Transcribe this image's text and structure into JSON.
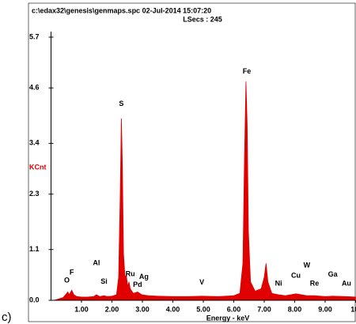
{
  "chart_data": {
    "type": "area",
    "header": [
      "c:\\edax32\\genesis\\genmaps.spc  02-Jul-2014 15:07:20",
      "LSecs :  245"
    ],
    "xlabel": "Energy - keV",
    "ylabel": "KCnt",
    "panel_label": "c)",
    "xlim": [
      0,
      10
    ],
    "ylim": [
      0,
      5.7
    ],
    "xticks": [
      {
        "value": 1,
        "label": "1.00"
      },
      {
        "value": 2,
        "label": "2.00"
      },
      {
        "value": 3,
        "label": "3.00"
      },
      {
        "value": 4,
        "label": "4.00"
      },
      {
        "value": 5,
        "label": "5.00"
      },
      {
        "value": 6,
        "label": "6.00"
      },
      {
        "value": 7,
        "label": "7.00"
      },
      {
        "value": 8,
        "label": "8.00"
      },
      {
        "value": 9,
        "label": "9.00"
      },
      {
        "value": 10,
        "label": "10."
      }
    ],
    "yticks": [
      {
        "value": 0,
        "label": "0.0"
      },
      1.1,
      2.3,
      3.4,
      4.6,
      5.7
    ],
    "color": "#e00000",
    "x": [
      0.1,
      0.2,
      0.3,
      0.4,
      0.5,
      0.55,
      0.6,
      0.68,
      0.75,
      0.85,
      1.0,
      1.2,
      1.4,
      1.49,
      1.6,
      1.74,
      1.85,
      2.0,
      2.15,
      2.22,
      2.27,
      2.31,
      2.34,
      2.38,
      2.43,
      2.47,
      2.52,
      2.56,
      2.6,
      2.7,
      2.84,
      2.98,
      3.2,
      3.5,
      4.0,
      4.5,
      4.95,
      5.5,
      6.0,
      6.2,
      6.3,
      6.35,
      6.4,
      6.44,
      6.48,
      6.55,
      6.7,
      6.9,
      7.0,
      7.06,
      7.12,
      7.25,
      7.47,
      7.7,
      8.04,
      8.4,
      8.65,
      9.0,
      9.25,
      9.7,
      10.0
    ],
    "values": [
      0,
      0.02,
      0.04,
      0.06,
      0.14,
      0.18,
      0.12,
      0.22,
      0.12,
      0.08,
      0.07,
      0.07,
      0.08,
      0.12,
      0.08,
      0.1,
      0.08,
      0.09,
      0.12,
      0.5,
      2.2,
      3.94,
      3.0,
      1.0,
      0.5,
      0.55,
      0.3,
      0.4,
      0.25,
      0.15,
      0.18,
      0.12,
      0.1,
      0.09,
      0.08,
      0.08,
      0.09,
      0.08,
      0.1,
      0.15,
      0.8,
      3.0,
      4.74,
      3.8,
      1.5,
      0.4,
      0.2,
      0.25,
      0.5,
      0.8,
      0.4,
      0.15,
      0.12,
      0.1,
      0.14,
      0.1,
      0.1,
      0.08,
      0.09,
      0.08,
      0.07
    ],
    "annotations": [
      {
        "text": "O",
        "x": 0.52,
        "y": 0.43
      },
      {
        "text": "F",
        "x": 0.68,
        "y": 0.6
      },
      {
        "text": "Al",
        "x": 1.49,
        "y": 0.8
      },
      {
        "text": "Si",
        "x": 1.74,
        "y": 0.4
      },
      {
        "text": "S",
        "x": 2.31,
        "y": 4.25
      },
      {
        "text": "Ru",
        "x": 2.6,
        "y": 0.56
      },
      {
        "text": "Ag",
        "x": 3.05,
        "y": 0.5
      },
      {
        "text": "Pd",
        "x": 2.84,
        "y": 0.33
      },
      {
        "text": "V",
        "x": 4.95,
        "y": 0.38
      },
      {
        "text": "Fe",
        "x": 6.43,
        "y": 4.95
      },
      {
        "text": "Ni",
        "x": 7.47,
        "y": 0.36
      },
      {
        "text": "Cu",
        "x": 8.04,
        "y": 0.53
      },
      {
        "text": "W",
        "x": 8.4,
        "y": 0.75
      },
      {
        "text": "Re",
        "x": 8.65,
        "y": 0.36
      },
      {
        "text": "Ga",
        "x": 9.25,
        "y": 0.55
      },
      {
        "text": "Au",
        "x": 9.7,
        "y": 0.36
      }
    ]
  }
}
